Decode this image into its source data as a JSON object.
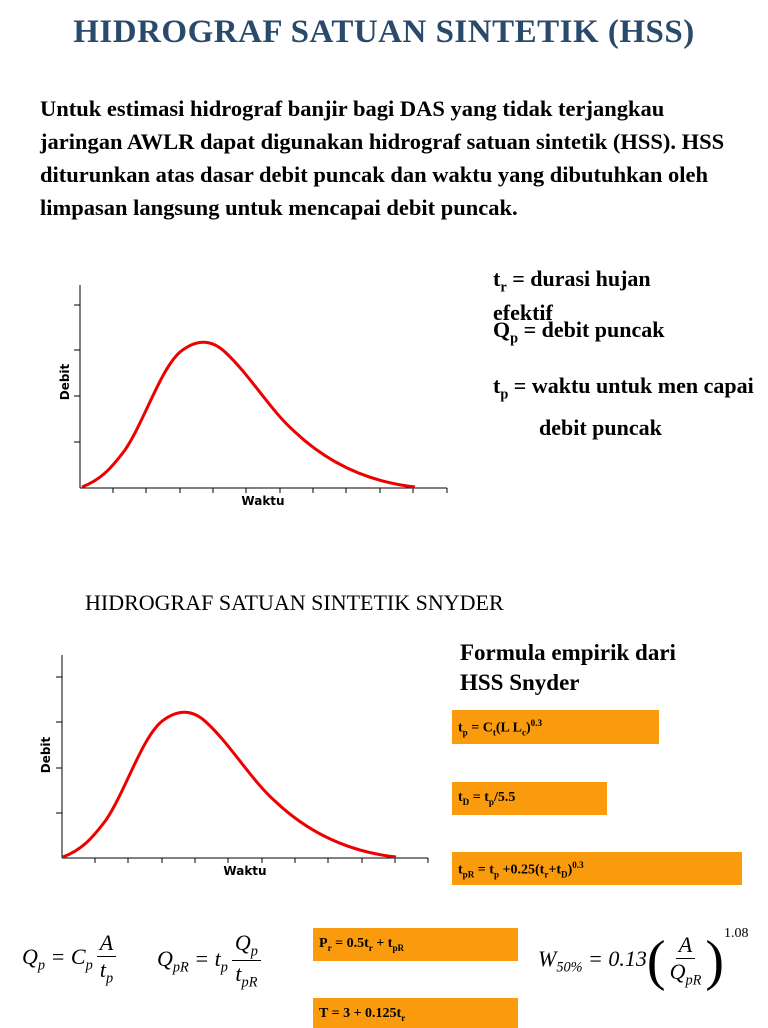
{
  "header": {
    "title": "HIDROGRAF SATUAN SINTETIK (HSS)"
  },
  "intro": "Untuk estimasi hidrograf banjir bagi DAS yang tidak terjangkau jaringan AWLR dapat digunakan hidrograf satuan sintetik (HSS). HSS diturunkan atas dasar debit puncak dan waktu yang dibutuhkan oleh limpasan langsung untuk mencapai debit puncak.",
  "figures": [
    {
      "y_label": "Debit",
      "x_label": "Waktu"
    },
    {
      "y_label": "Debit",
      "x_label": "Waktu"
    }
  ],
  "definitions": [
    [
      "t",
      {
        "sub": "r"
      },
      " = durasi hujan efektif"
    ],
    [
      "Q",
      {
        "sub": "p"
      },
      " = debit puncak"
    ],
    [
      "t",
      {
        "sub": "p"
      },
      " = waktu untuk men capai debit puncak"
    ]
  ],
  "section2": {
    "title": "HIDROGRAF SATUAN SINTETIK SNYDER",
    "formula_heading": "Formula empirik dari HSS Snyder"
  },
  "boxes": [
    [
      "t",
      {
        "sub": "p"
      },
      " = C",
      {
        "sub": "t"
      },
      "(L L",
      {
        "sub": "c"
      },
      ")",
      {
        "sup": "0.3"
      }
    ],
    [
      "t",
      {
        "sub": "D"
      },
      " = t",
      {
        "sub": "p"
      },
      "/5.5"
    ],
    [
      "t",
      {
        "sub": "pR"
      },
      " = t",
      {
        "sub": "p"
      },
      " +0.25(t",
      {
        "sub": "r"
      },
      "+t",
      {
        "sub": "D"
      },
      ")",
      {
        "sup": "0.3"
      }
    ],
    [
      "P",
      {
        "sub": "r"
      },
      " = 0.5t",
      {
        "sub": "r"
      },
      " + t",
      {
        "sub": "pR"
      }
    ],
    [
      "T = 3 + 0.125t",
      {
        "sub": "r"
      }
    ]
  ],
  "equations": [
    {
      "lhs": [
        "Q",
        {
          "sub": "p"
        },
        " = C",
        {
          "sub": "p"
        }
      ],
      "num": [
        "A"
      ],
      "den": [
        "t",
        {
          "sub": "p"
        }
      ]
    },
    {
      "lhs": [
        "Q",
        {
          "sub": "pR"
        },
        " = t",
        {
          "sub": "p"
        }
      ],
      "num": [
        "Q",
        {
          "sub": "p"
        }
      ],
      "den": [
        "t",
        {
          "sub": "pR"
        }
      ]
    },
    {
      "lhs": [
        "W",
        {
          "sub": "50%"
        },
        " = 0.13"
      ],
      "num": [
        "A"
      ],
      "den": [
        "Q",
        {
          "sub": "pR"
        }
      ],
      "power": "1.08"
    }
  ]
}
